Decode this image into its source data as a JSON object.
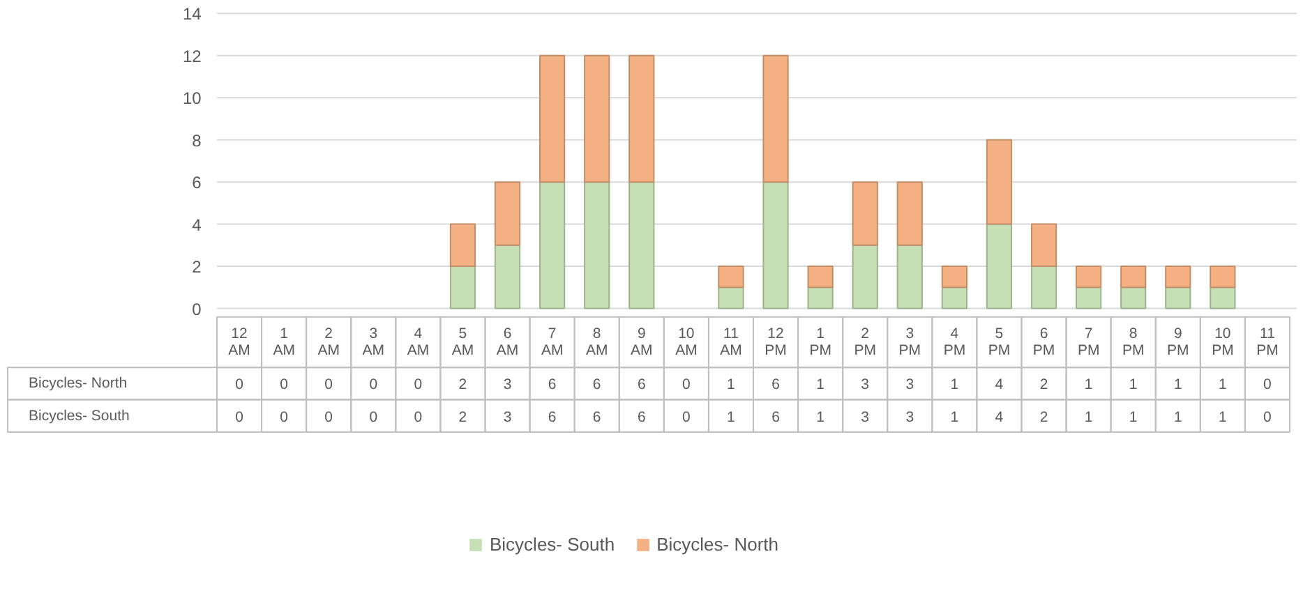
{
  "chart_data": {
    "type": "bar",
    "stacked": true,
    "data_labels": true,
    "grid": "y",
    "legend": "bottom",
    "categories": [
      "12 AM",
      "1 AM",
      "2 AM",
      "3 AM",
      "4 AM",
      "5 AM",
      "6 AM",
      "7 AM",
      "8 AM",
      "9 AM",
      "10 AM",
      "11 AM",
      "12 PM",
      "1 PM",
      "2 PM",
      "3 PM",
      "4 PM",
      "5 PM",
      "6 PM",
      "7 PM",
      "8 PM",
      "9 PM",
      "10 PM",
      "11 PM"
    ],
    "ylim": [
      0,
      14
    ],
    "yticks": [
      0,
      2,
      4,
      6,
      8,
      10,
      12,
      14
    ],
    "series": [
      {
        "name": "Bicycles- South",
        "color": "#c5e0b4",
        "values": [
          0,
          0,
          0,
          0,
          0,
          2,
          3,
          6,
          6,
          6,
          0,
          1,
          6,
          1,
          3,
          3,
          1,
          4,
          2,
          1,
          1,
          1,
          1,
          0
        ]
      },
      {
        "name": "Bicycles- North",
        "color": "#f4b183",
        "values": [
          0,
          0,
          0,
          0,
          0,
          2,
          3,
          6,
          6,
          6,
          0,
          1,
          6,
          1,
          3,
          3,
          1,
          4,
          2,
          1,
          1,
          1,
          1,
          0
        ]
      }
    ]
  }
}
